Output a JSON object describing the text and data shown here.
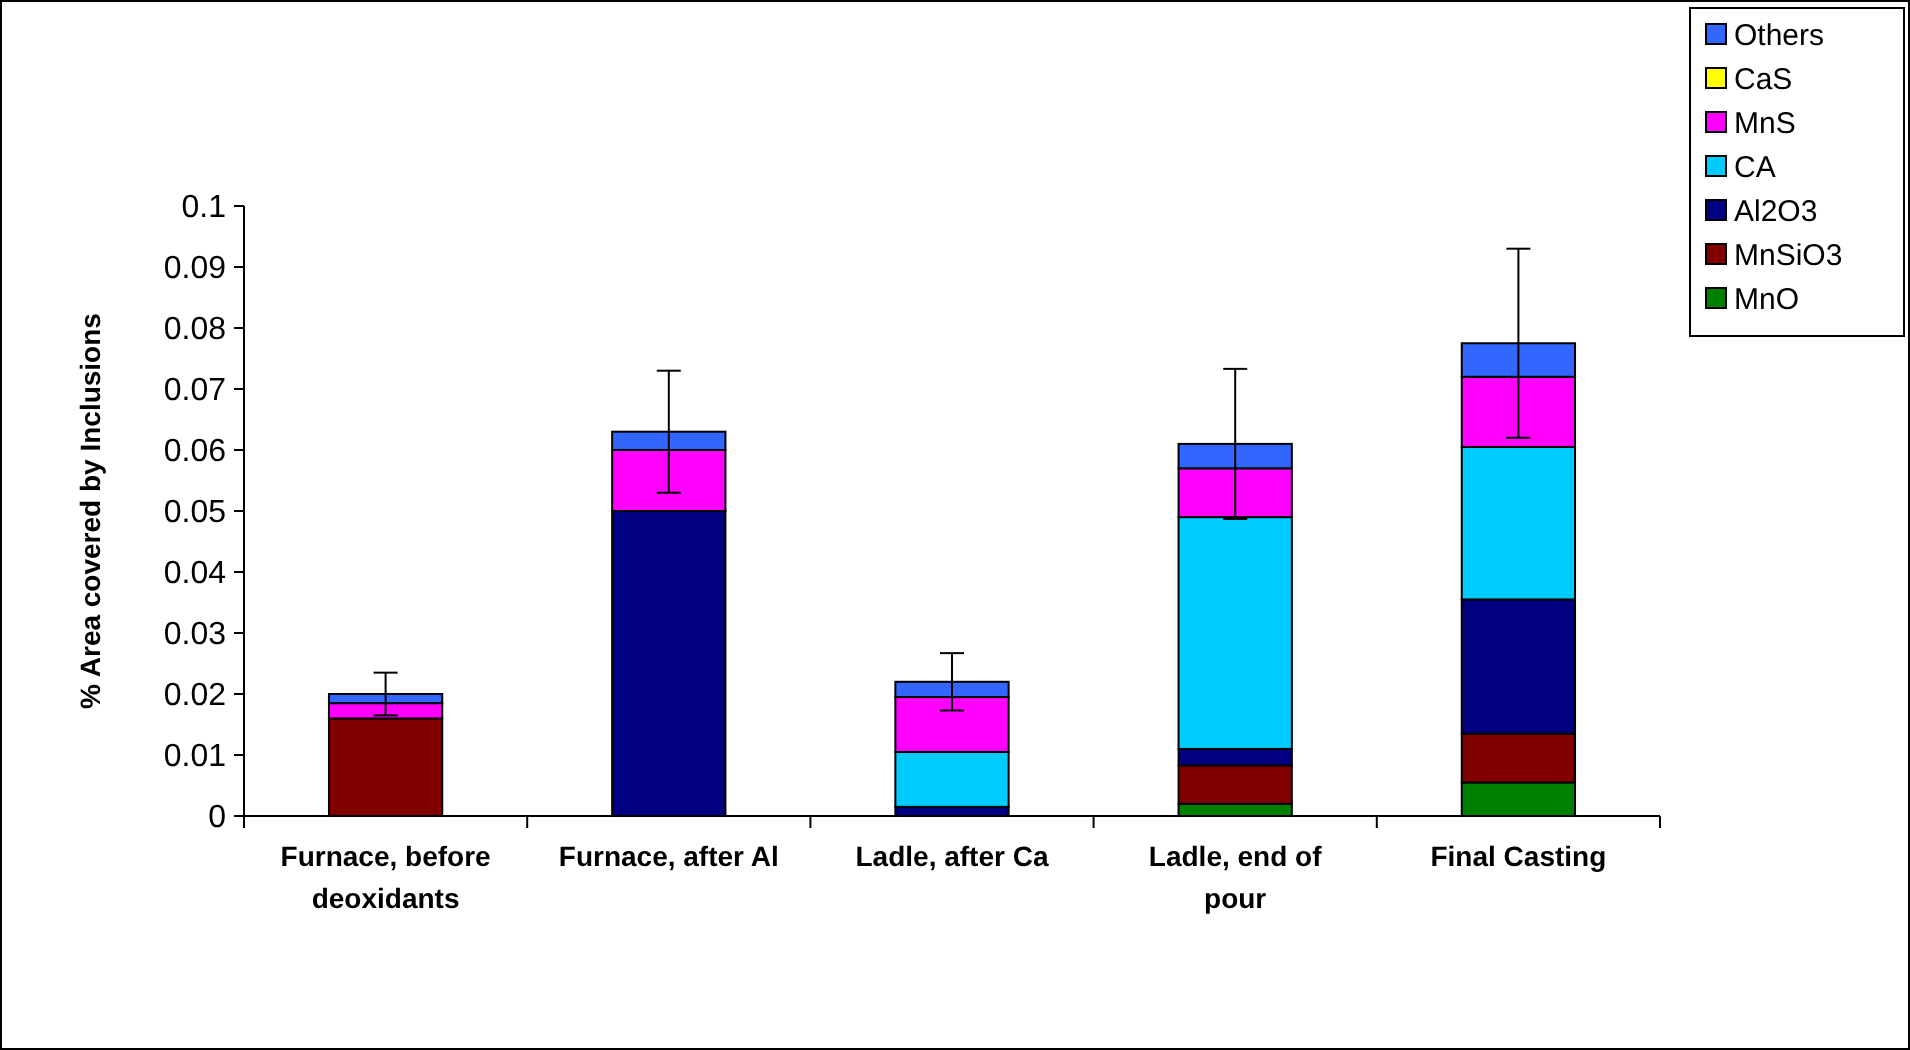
{
  "chart_data": {
    "type": "bar",
    "stacked": true,
    "ylabel": "% Area covered by Inclusions",
    "categories": [
      "Furnace, before deoxidants",
      "Furnace, after Al",
      "Ladle, after Ca",
      "Ladle, end of pour",
      "Final Casting"
    ],
    "series": [
      {
        "name": "MnO",
        "color": "#008000",
        "values": [
          null,
          null,
          null,
          0.002,
          0.0055
        ]
      },
      {
        "name": "MnSiO3",
        "color": "#800000",
        "values": [
          0.016,
          0,
          0,
          0.0063,
          0.008
        ]
      },
      {
        "name": "Al2O3",
        "color": "#000080",
        "values": [
          0,
          0.05,
          0.0015,
          0.0027,
          0.022
        ]
      },
      {
        "name": "CA",
        "color": "#00ccff",
        "values": [
          0,
          0,
          0.009,
          0.038,
          0.025
        ]
      },
      {
        "name": "MnS",
        "color": "#ff00ff",
        "values": [
          0.0025,
          0.01,
          0.009,
          0.008,
          0.0115
        ]
      },
      {
        "name": "CaS",
        "color": "#ffff00",
        "values": [
          0,
          0,
          0,
          0,
          0
        ]
      },
      {
        "name": "Others",
        "color": "#3366ff",
        "values": [
          0.0015,
          0.003,
          0.0025,
          0.004,
          0.0055
        ],
        "errors": [
          0.0035,
          0.01,
          0.0047,
          0.0123,
          0.0155
        ]
      }
    ],
    "ylim": [
      0,
      0.1
    ],
    "yticks": [
      0,
      0.01,
      0.02,
      0.03,
      0.04,
      0.05,
      0.06,
      0.07,
      0.08,
      0.09,
      0.1
    ],
    "grid": false,
    "legend": "top right"
  }
}
